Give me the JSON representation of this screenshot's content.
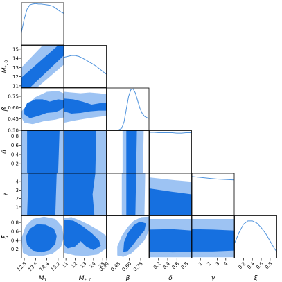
{
  "chart_data": {
    "type": "corner",
    "parameters": [
      {
        "name": "M_1",
        "label": "M",
        "label_sub": "1",
        "range": [
          12.6,
          15.6
        ],
        "ticks": [
          12.8,
          13.6,
          14.4,
          15.2
        ],
        "tick_labels": [
          "12.8",
          "13.6",
          "14.4",
          "15.2"
        ]
      },
      {
        "name": "M_*,0",
        "label": "M",
        "label_sub": "*, 0",
        "range": [
          10.8,
          15.4
        ],
        "ticks": [
          11,
          12,
          13,
          14,
          15
        ],
        "tick_labels": [
          "11",
          "12",
          "13",
          "14",
          "15"
        ]
      },
      {
        "name": "beta",
        "label": "β",
        "label_sub": "",
        "range": [
          0.3,
          0.86
        ],
        "ticks": [
          0.3,
          0.45,
          0.6,
          0.75
        ],
        "tick_labels": [
          "0.30",
          "0.45",
          "0.60",
          "0.75"
        ]
      },
      {
        "name": "delta",
        "label": "δ",
        "label_sub": "",
        "range": [
          0.0,
          0.92
        ],
        "ticks": [
          0.2,
          0.4,
          0.6,
          0.8
        ],
        "tick_labels": [
          "0.2",
          "0.4",
          "0.6",
          "0.8"
        ]
      },
      {
        "name": "gamma",
        "label": "γ",
        "label_sub": "",
        "range": [
          0.0,
          5.0
        ],
        "ticks": [
          1,
          2,
          3,
          4
        ],
        "tick_labels": [
          "1",
          "2",
          "3",
          "4"
        ]
      },
      {
        "name": "xi",
        "label": "ξ",
        "label_sub": "",
        "range": [
          0.0,
          0.95
        ],
        "ticks": [
          0.2,
          0.4,
          0.6,
          0.8
        ],
        "tick_labels": [
          "0.2",
          "0.4",
          "0.6",
          "0.8"
        ]
      }
    ],
    "diagonal": [
      {
        "param": "M_1",
        "x": [
          12.6,
          12.8,
          13.0,
          13.2,
          13.4,
          13.6,
          13.8,
          14.0,
          14.2,
          14.4,
          14.6,
          14.8,
          15.0,
          15.2,
          15.4,
          15.6
        ],
        "density": [
          0.3,
          0.62,
          0.85,
          0.95,
          0.97,
          0.98,
          0.97,
          0.97,
          0.96,
          0.95,
          0.94,
          0.92,
          0.88,
          0.83,
          0.78,
          0.75
        ]
      },
      {
        "param": "M_*,0",
        "x": [
          10.8,
          11.2,
          11.6,
          12.0,
          12.4,
          12.8,
          13.2,
          13.6,
          14.0,
          14.4,
          14.8,
          15.2,
          15.4
        ],
        "density": [
          0.72,
          0.74,
          0.76,
          0.76,
          0.74,
          0.7,
          0.65,
          0.6,
          0.55,
          0.49,
          0.42,
          0.35,
          0.32
        ]
      },
      {
        "param": "beta",
        "x": [
          0.3,
          0.4,
          0.46,
          0.5,
          0.53,
          0.56,
          0.59,
          0.62,
          0.65,
          0.68,
          0.71,
          0.74,
          0.77,
          0.8,
          0.83,
          0.86
        ],
        "density": [
          0.0,
          0.0,
          0.01,
          0.05,
          0.2,
          0.5,
          0.8,
          0.96,
          0.98,
          0.88,
          0.7,
          0.52,
          0.4,
          0.33,
          0.3,
          0.28
        ]
      },
      {
        "param": "delta",
        "x": [
          0.0,
          0.1,
          0.2,
          0.3,
          0.4,
          0.5,
          0.6,
          0.7,
          0.8,
          0.92
        ],
        "density": [
          0.96,
          0.96,
          0.95,
          0.95,
          0.95,
          0.95,
          0.94,
          0.94,
          0.95,
          0.95
        ]
      },
      {
        "param": "gamma",
        "x": [
          0.0,
          1.0,
          2.0,
          3.0,
          4.0,
          5.0
        ],
        "density": [
          0.92,
          0.9,
          0.88,
          0.86,
          0.85,
          0.84
        ]
      },
      {
        "param": "xi",
        "x": [
          0.0,
          0.1,
          0.2,
          0.3,
          0.4,
          0.5,
          0.6,
          0.7,
          0.8,
          0.9,
          0.95
        ],
        "density": [
          0.35,
          0.6,
          0.8,
          0.88,
          0.88,
          0.83,
          0.72,
          0.58,
          0.4,
          0.22,
          0.15
        ]
      }
    ],
    "contour_levels": [
      "outer",
      "inner"
    ],
    "colors": {
      "outer": "#9dc3f3",
      "inner": "#1670e0",
      "line": "#4f93dd",
      "axis": "#000000"
    },
    "contours": [
      {
        "x": "M_1",
        "y": "M_*,0",
        "outer": [
          [
            12.6,
            10.8
          ],
          [
            13.7,
            10.8
          ],
          [
            15.6,
            13.3
          ],
          [
            15.6,
            15.4
          ],
          [
            14.1,
            15.4
          ],
          [
            12.6,
            13.0
          ]
        ],
        "inner": [
          [
            12.6,
            10.8
          ],
          [
            13.2,
            10.8
          ],
          [
            15.6,
            14.3
          ],
          [
            15.6,
            15.4
          ],
          [
            15.2,
            15.4
          ],
          [
            12.6,
            11.9
          ]
        ]
      },
      {
        "x": "M_1",
        "y": "beta",
        "outer": [
          [
            12.6,
            0.47
          ],
          [
            12.8,
            0.4
          ],
          [
            13.4,
            0.38
          ],
          [
            14.2,
            0.42
          ],
          [
            15.0,
            0.44
          ],
          [
            15.6,
            0.47
          ],
          [
            15.6,
            0.79
          ],
          [
            15.2,
            0.82
          ],
          [
            14.4,
            0.81
          ],
          [
            13.6,
            0.74
          ],
          [
            13.0,
            0.63
          ],
          [
            12.6,
            0.55
          ]
        ],
        "inner": [
          [
            12.8,
            0.51
          ],
          [
            13.2,
            0.46
          ],
          [
            13.8,
            0.49
          ],
          [
            14.4,
            0.53
          ],
          [
            15.0,
            0.54
          ],
          [
            15.4,
            0.57
          ],
          [
            15.6,
            0.6
          ],
          [
            15.6,
            0.7
          ],
          [
            15.2,
            0.71
          ],
          [
            14.6,
            0.68
          ],
          [
            14.1,
            0.71
          ],
          [
            13.6,
            0.71
          ],
          [
            13.0,
            0.66
          ],
          [
            12.8,
            0.58
          ]
        ]
      },
      {
        "x": "M_*,0",
        "y": "beta",
        "outer": [
          [
            10.8,
            0.4
          ],
          [
            12.0,
            0.43
          ],
          [
            13.0,
            0.45
          ],
          [
            14.0,
            0.47
          ],
          [
            15.4,
            0.49
          ],
          [
            15.4,
            0.78
          ],
          [
            14.6,
            0.79
          ],
          [
            13.6,
            0.8
          ],
          [
            12.6,
            0.79
          ],
          [
            11.6,
            0.8
          ],
          [
            10.8,
            0.81
          ]
        ],
        "inner": [
          [
            10.8,
            0.55
          ],
          [
            11.6,
            0.52
          ],
          [
            12.6,
            0.53
          ],
          [
            13.6,
            0.55
          ],
          [
            14.6,
            0.56
          ],
          [
            15.4,
            0.56
          ],
          [
            15.4,
            0.66
          ],
          [
            14.8,
            0.66
          ],
          [
            13.8,
            0.64
          ],
          [
            12.8,
            0.68
          ],
          [
            11.8,
            0.71
          ],
          [
            10.8,
            0.72
          ]
        ]
      },
      {
        "x": "M_1",
        "y": "delta",
        "outer": [
          [
            12.6,
            0.0
          ],
          [
            15.6,
            0.0
          ],
          [
            15.6,
            0.92
          ],
          [
            12.6,
            0.92
          ]
        ],
        "inner": [
          [
            13.0,
            0.0
          ],
          [
            15.2,
            0.0
          ],
          [
            15.3,
            0.92
          ],
          [
            13.0,
            0.92
          ]
        ]
      },
      {
        "x": "M_*,0",
        "y": "delta",
        "outer": [
          [
            10.8,
            0.0
          ],
          [
            15.4,
            0.0
          ],
          [
            15.4,
            0.92
          ],
          [
            10.8,
            0.92
          ]
        ],
        "inner": [
          [
            10.8,
            0.0
          ],
          [
            14.2,
            0.0
          ],
          [
            14.3,
            0.92
          ],
          [
            10.8,
            0.92
          ]
        ]
      },
      {
        "x": "beta",
        "y": "delta",
        "outer": [
          [
            0.51,
            0.0
          ],
          [
            0.78,
            0.0
          ],
          [
            0.79,
            0.92
          ],
          [
            0.51,
            0.92
          ]
        ],
        "inner": [
          [
            0.56,
            0.0
          ],
          [
            0.69,
            0.0
          ],
          [
            0.7,
            0.92
          ],
          [
            0.56,
            0.92
          ]
        ]
      },
      {
        "x": "M_1",
        "y": "gamma",
        "outer": [
          [
            12.6,
            0.0
          ],
          [
            15.6,
            0.0
          ],
          [
            15.6,
            5.0
          ],
          [
            12.6,
            5.0
          ]
        ],
        "inner": [
          [
            13.0,
            0.0
          ],
          [
            15.0,
            0.0
          ],
          [
            15.1,
            5.0
          ],
          [
            13.1,
            5.0
          ]
        ]
      },
      {
        "x": "M_*,0",
        "y": "gamma",
        "outer": [
          [
            10.8,
            0.0
          ],
          [
            15.4,
            0.0
          ],
          [
            15.4,
            5.0
          ],
          [
            10.8,
            5.0
          ]
        ],
        "inner": [
          [
            10.8,
            0.0
          ],
          [
            14.1,
            0.0
          ],
          [
            13.9,
            2.5
          ],
          [
            14.2,
            5.0
          ],
          [
            10.8,
            5.0
          ]
        ]
      },
      {
        "x": "beta",
        "y": "gamma",
        "outer": [
          [
            0.5,
            0.0
          ],
          [
            0.8,
            0.0
          ],
          [
            0.81,
            5.0
          ],
          [
            0.5,
            5.0
          ]
        ],
        "inner": [
          [
            0.56,
            0.0
          ],
          [
            0.68,
            0.0
          ],
          [
            0.69,
            5.0
          ],
          [
            0.56,
            5.0
          ]
        ]
      },
      {
        "x": "delta",
        "y": "gamma",
        "outer": [
          [
            0.0,
            0.0
          ],
          [
            0.92,
            0.0
          ],
          [
            0.92,
            4.0
          ],
          [
            0.5,
            4.2
          ],
          [
            0.0,
            4.5
          ]
        ],
        "inner": [
          [
            0.0,
            0.0
          ],
          [
            0.92,
            0.0
          ],
          [
            0.92,
            2.5
          ],
          [
            0.5,
            2.8
          ],
          [
            0.0,
            3.2
          ]
        ]
      },
      {
        "x": "M_1",
        "y": "xi",
        "outer": [
          [
            12.7,
            0.12
          ],
          [
            13.2,
            0.04
          ],
          [
            14.0,
            0.04
          ],
          [
            14.8,
            0.1
          ],
          [
            15.4,
            0.25
          ],
          [
            15.6,
            0.45
          ],
          [
            15.5,
            0.7
          ],
          [
            15.0,
            0.88
          ],
          [
            14.2,
            0.93
          ],
          [
            13.4,
            0.88
          ],
          [
            12.9,
            0.72
          ],
          [
            12.6,
            0.45
          ]
        ],
        "inner": [
          [
            13.0,
            0.3
          ],
          [
            13.4,
            0.17
          ],
          [
            14.0,
            0.13
          ],
          [
            14.6,
            0.18
          ],
          [
            15.0,
            0.32
          ],
          [
            15.1,
            0.5
          ],
          [
            14.9,
            0.66
          ],
          [
            14.3,
            0.75
          ],
          [
            13.7,
            0.76
          ],
          [
            13.2,
            0.66
          ],
          [
            12.9,
            0.48
          ]
        ]
      },
      {
        "x": "M_*,0",
        "y": "xi",
        "outer": [
          [
            10.8,
            0.9
          ],
          [
            11.6,
            0.92
          ],
          [
            12.6,
            0.84
          ],
          [
            13.6,
            0.74
          ],
          [
            14.6,
            0.62
          ],
          [
            15.4,
            0.5
          ],
          [
            15.4,
            0.22
          ],
          [
            14.4,
            0.08
          ],
          [
            13.2,
            0.05
          ],
          [
            12.0,
            0.06
          ],
          [
            10.8,
            0.12
          ]
        ],
        "inner": [
          [
            10.8,
            0.86
          ],
          [
            11.8,
            0.84
          ],
          [
            12.8,
            0.72
          ],
          [
            13.8,
            0.56
          ],
          [
            14.6,
            0.4
          ],
          [
            14.8,
            0.28
          ],
          [
            14.0,
            0.18
          ],
          [
            13.2,
            0.26
          ],
          [
            12.6,
            0.38
          ],
          [
            12.0,
            0.26
          ],
          [
            11.2,
            0.22
          ],
          [
            10.8,
            0.3
          ]
        ]
      },
      {
        "x": "beta",
        "y": "xi",
        "outer": [
          [
            0.44,
            0.06
          ],
          [
            0.52,
            0.03
          ],
          [
            0.62,
            0.1
          ],
          [
            0.7,
            0.22
          ],
          [
            0.8,
            0.4
          ],
          [
            0.86,
            0.62
          ],
          [
            0.86,
            0.93
          ],
          [
            0.76,
            0.92
          ],
          [
            0.66,
            0.84
          ],
          [
            0.58,
            0.7
          ],
          [
            0.5,
            0.5
          ],
          [
            0.44,
            0.26
          ]
        ],
        "inner": [
          [
            0.52,
            0.14
          ],
          [
            0.58,
            0.16
          ],
          [
            0.64,
            0.28
          ],
          [
            0.72,
            0.46
          ],
          [
            0.8,
            0.62
          ],
          [
            0.82,
            0.78
          ],
          [
            0.74,
            0.82
          ],
          [
            0.66,
            0.74
          ],
          [
            0.58,
            0.56
          ],
          [
            0.53,
            0.36
          ]
        ]
      },
      {
        "x": "delta",
        "y": "xi",
        "outer": [
          [
            0.0,
            0.02
          ],
          [
            0.92,
            0.02
          ],
          [
            0.92,
            0.88
          ],
          [
            0.0,
            0.88
          ]
        ],
        "inner": [
          [
            0.0,
            0.15
          ],
          [
            0.5,
            0.13
          ],
          [
            0.92,
            0.14
          ],
          [
            0.92,
            0.62
          ],
          [
            0.5,
            0.65
          ],
          [
            0.0,
            0.64
          ]
        ]
      },
      {
        "x": "gamma",
        "y": "xi",
        "outer": [
          [
            0.0,
            0.02
          ],
          [
            5.0,
            0.02
          ],
          [
            5.0,
            0.88
          ],
          [
            0.0,
            0.88
          ]
        ],
        "inner": [
          [
            0.0,
            0.15
          ],
          [
            2.5,
            0.15
          ],
          [
            5.0,
            0.17
          ],
          [
            5.0,
            0.62
          ],
          [
            2.5,
            0.64
          ],
          [
            0.0,
            0.65
          ]
        ]
      }
    ]
  }
}
